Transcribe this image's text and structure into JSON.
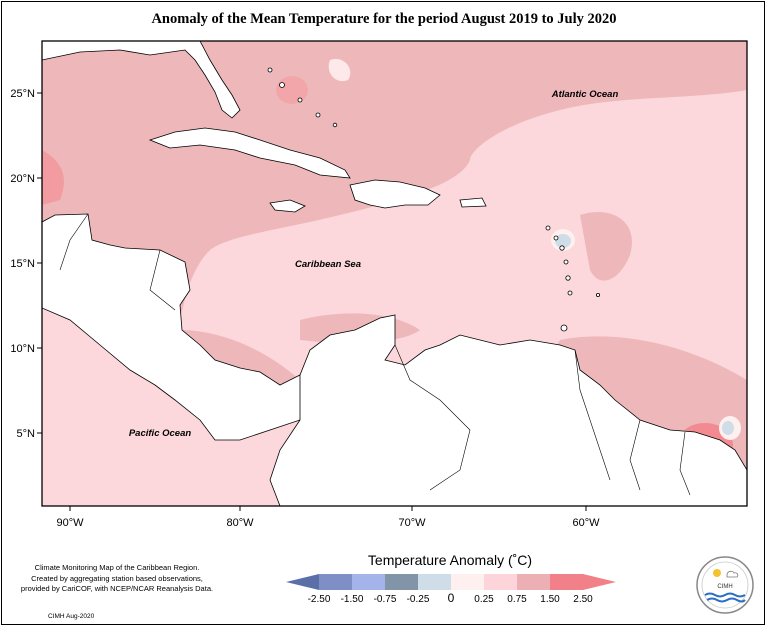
{
  "title": "Anomaly of the Mean Temperature for the period August 2019 to July 2020",
  "axes": {
    "lon_labels": [
      "90°W",
      "80°W",
      "70°W",
      "60°W"
    ],
    "lat_labels": [
      "25°N",
      "20°N",
      "15°N",
      "10°N",
      "5°N"
    ]
  },
  "places": {
    "atlantic": "Atlantic Ocean",
    "caribbean": "Caribbean Sea",
    "pacific": "Pacific Ocean"
  },
  "footnote": {
    "line1": "Climate Monitoring Map of the Caribbean Region.",
    "line2": "Created by aggregating station based observations,",
    "line3": "provided by CariCOF, with NCEP/NCAR Reanalysis Data.",
    "credit": "CIMH Aug-2020"
  },
  "legend": {
    "title": "Temperature Anomaly (˚C)",
    "labels": [
      "-2.50",
      "-1.50",
      "-0.75",
      "-0.25",
      "0",
      "0.25",
      "0.75",
      "1.50",
      "2.50"
    ],
    "colors": [
      "#5a6ea8",
      "#7e8fc8",
      "#a4b4ea",
      "#8294a8",
      "#cfdde8",
      "#fff0f0",
      "#fcd4da",
      "#ecb0b4",
      "#f28088"
    ]
  },
  "logo": {
    "text": "CIMH"
  }
}
